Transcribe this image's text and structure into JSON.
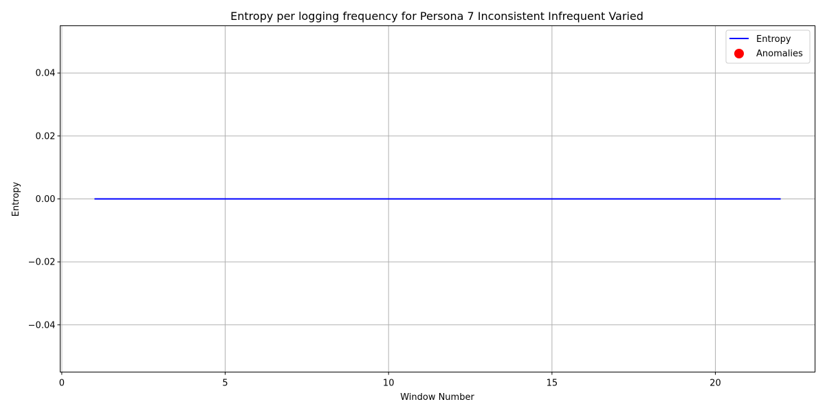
{
  "chart_data": {
    "type": "line",
    "title": "Entropy per logging frequency for Persona 7 Inconsistent Infrequent Varied",
    "xlabel": "Window Number",
    "ylabel": "Entropy",
    "xlim": [
      -0.05,
      23.05
    ],
    "ylim": [
      -0.055,
      0.055
    ],
    "x_ticks": [
      0,
      5,
      10,
      15,
      20
    ],
    "x_tick_labels": [
      "0",
      "5",
      "10",
      "15",
      "20"
    ],
    "y_ticks": [
      -0.04,
      -0.02,
      0.0,
      0.02,
      0.04
    ],
    "y_tick_labels": [
      "−0.04",
      "−0.02",
      "0.00",
      "0.02",
      "0.04"
    ],
    "grid": true,
    "legend_position": "top-right",
    "series": [
      {
        "name": "Entropy",
        "kind": "line",
        "color": "#0000ff",
        "x": [
          1,
          2,
          3,
          4,
          5,
          6,
          7,
          8,
          9,
          10,
          11,
          12,
          13,
          14,
          15,
          16,
          17,
          18,
          19,
          20,
          21,
          22
        ],
        "y": [
          0,
          0,
          0,
          0,
          0,
          0,
          0,
          0,
          0,
          0,
          0,
          0,
          0,
          0,
          0,
          0,
          0,
          0,
          0,
          0,
          0,
          0
        ]
      },
      {
        "name": "Anomalies",
        "kind": "scatter",
        "color": "#ff0000",
        "x": [],
        "y": []
      }
    ]
  }
}
